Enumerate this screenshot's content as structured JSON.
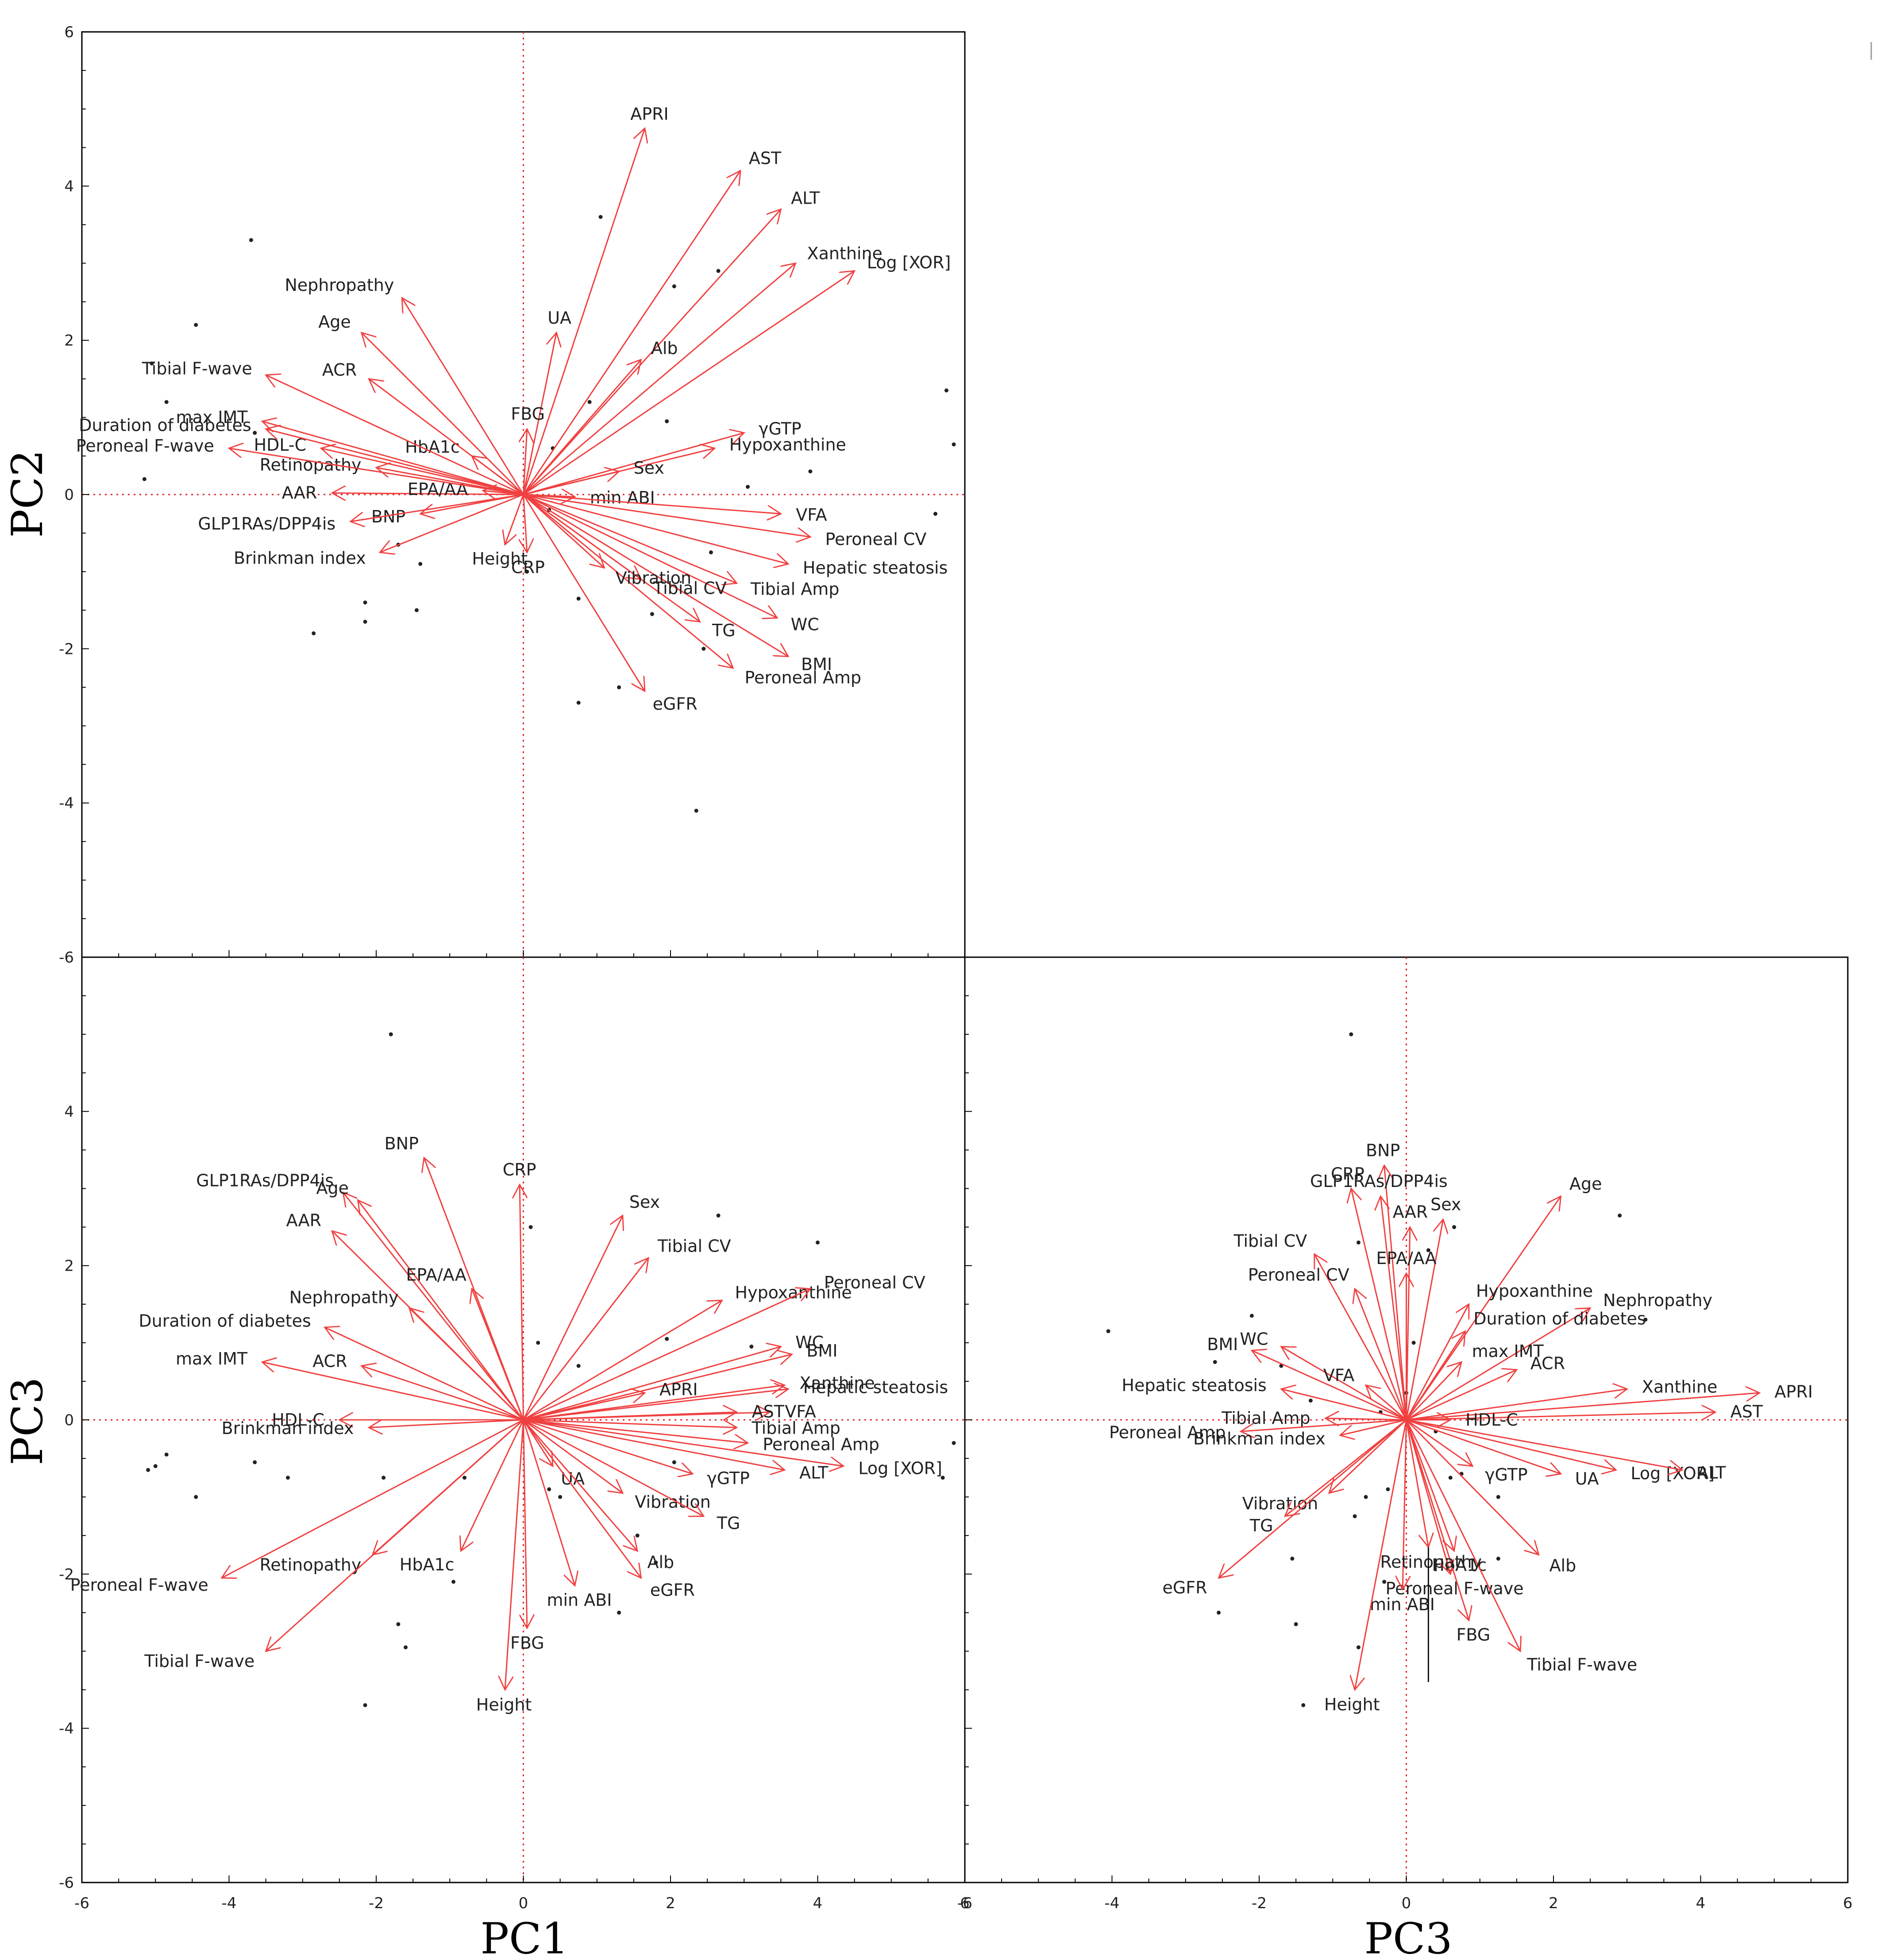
{
  "chart_data": [
    {
      "type": "biplot",
      "xlabel": "",
      "ylabel": "PC2",
      "xlim": [
        -6,
        6
      ],
      "ylim": [
        -6,
        6
      ],
      "xticks": [
        "-6",
        "-4",
        "-2",
        "0",
        "2",
        "4",
        "6"
      ],
      "yticks": [
        "6",
        "4",
        "2",
        "0",
        "-2",
        "-4",
        "-6"
      ],
      "loadings": [
        {
          "name": "APRI",
          "x": 1.65,
          "y": 4.75
        },
        {
          "name": "AST",
          "x": 2.95,
          "y": 4.2
        },
        {
          "name": "ALT",
          "x": 3.5,
          "y": 3.7
        },
        {
          "name": "Xanthine",
          "x": 3.7,
          "y": 3.0
        },
        {
          "name": "Log [XOR]",
          "x": 4.5,
          "y": 2.9
        },
        {
          "name": "UA",
          "x": 0.45,
          "y": 2.1
        },
        {
          "name": "Alb",
          "x": 1.6,
          "y": 1.75
        },
        {
          "name": "γGTP",
          "x": 3.0,
          "y": 0.8
        },
        {
          "name": "Hypoxanthine",
          "x": 2.6,
          "y": 0.6
        },
        {
          "name": "FBG",
          "x": 0.05,
          "y": 0.85
        },
        {
          "name": "Sex",
          "x": 1.3,
          "y": 0.3
        },
        {
          "name": "min ABI",
          "x": 0.7,
          "y": -0.03
        },
        {
          "name": "VFA",
          "x": 3.5,
          "y": -0.25
        },
        {
          "name": "Peroneal CV",
          "x": 3.9,
          "y": -0.55
        },
        {
          "name": "Hepatic steatosis",
          "x": 3.6,
          "y": -0.9
        },
        {
          "name": "Tibial Amp",
          "x": 2.9,
          "y": -1.15
        },
        {
          "name": "WC",
          "x": 3.45,
          "y": -1.6
        },
        {
          "name": "TG",
          "x": 2.4,
          "y": -1.65
        },
        {
          "name": "BMI",
          "x": 3.6,
          "y": -2.1
        },
        {
          "name": "Peroneal Amp",
          "x": 2.85,
          "y": -2.25
        },
        {
          "name": "eGFR",
          "x": 1.65,
          "y": -2.55
        },
        {
          "name": "Tibial CV",
          "x": 1.6,
          "y": -1.1
        },
        {
          "name": "Vibration",
          "x": 1.1,
          "y": -0.95
        },
        {
          "name": "CRP",
          "x": 0.05,
          "y": -0.75
        },
        {
          "name": "Height",
          "x": -0.25,
          "y": -0.65
        },
        {
          "name": "Brinkman index",
          "x": -1.95,
          "y": -0.75
        },
        {
          "name": "BNP",
          "x": -1.4,
          "y": -0.25
        },
        {
          "name": "GLP1RAs/DPP4is",
          "x": -2.35,
          "y": -0.35
        },
        {
          "name": "AAR",
          "x": -2.6,
          "y": 0.02
        },
        {
          "name": "EPA/AA",
          "x": -0.55,
          "y": 0.05
        },
        {
          "name": "Retinopathy",
          "x": -2.0,
          "y": 0.35
        },
        {
          "name": "HbA1c",
          "x": -0.7,
          "y": 0.5
        },
        {
          "name": "HDL-C",
          "x": -2.75,
          "y": 0.6
        },
        {
          "name": "Peroneal F-wave",
          "x": -4.0,
          "y": 0.6
        },
        {
          "name": "Duration of diabetes",
          "x": -3.5,
          "y": 0.85
        },
        {
          "name": "max IMT",
          "x": -3.55,
          "y": 0.95
        },
        {
          "name": "Tibial F-wave",
          "x": -3.5,
          "y": 1.55
        },
        {
          "name": "ACR",
          "x": -2.1,
          "y": 1.5
        },
        {
          "name": "Age",
          "x": -2.2,
          "y": 2.1
        },
        {
          "name": "Nephropathy",
          "x": -1.65,
          "y": 2.55
        }
      ],
      "scores": [
        {
          "x": -3.7,
          "y": 3.3
        },
        {
          "x": -4.45,
          "y": 2.2
        },
        {
          "x": -5.05,
          "y": 1.7
        },
        {
          "x": -4.85,
          "y": 1.2
        },
        {
          "x": -5.15,
          "y": 0.2
        },
        {
          "x": -3.65,
          "y": 0.8
        },
        {
          "x": -2.85,
          "y": -1.8
        },
        {
          "x": -2.15,
          "y": -1.4
        },
        {
          "x": -2.15,
          "y": -1.65
        },
        {
          "x": -1.7,
          "y": -0.65
        },
        {
          "x": -1.45,
          "y": -1.5
        },
        {
          "x": -1.4,
          "y": -0.9
        },
        {
          "x": 1.05,
          "y": 3.6
        },
        {
          "x": 2.05,
          "y": 2.7
        },
        {
          "x": 2.65,
          "y": 2.9
        },
        {
          "x": 5.75,
          "y": 1.35
        },
        {
          "x": 5.85,
          "y": 0.65
        },
        {
          "x": 5.6,
          "y": -0.25
        },
        {
          "x": 3.9,
          "y": 0.3
        },
        {
          "x": 3.05,
          "y": 0.1
        },
        {
          "x": 0.4,
          "y": 0.6
        },
        {
          "x": 0.9,
          "y": 1.2
        },
        {
          "x": 1.95,
          "y": 0.95
        },
        {
          "x": 0.75,
          "y": -1.35
        },
        {
          "x": 2.55,
          "y": -0.75
        },
        {
          "x": 1.75,
          "y": -1.55
        },
        {
          "x": 2.45,
          "y": -2.0
        },
        {
          "x": 0.75,
          "y": -2.7
        },
        {
          "x": 1.3,
          "y": -2.5
        },
        {
          "x": 2.35,
          "y": -4.1
        },
        {
          "x": 0.05,
          "y": -1.0
        },
        {
          "x": 0.35,
          "y": -0.2
        }
      ]
    },
    {
      "type": "biplot",
      "xlabel": "PC1",
      "ylabel": "PC3",
      "xlim": [
        -6,
        6
      ],
      "ylim": [
        -6,
        6
      ],
      "xticks": [
        "-6",
        "-4",
        "-2",
        "0",
        "2",
        "4",
        "6"
      ],
      "yticks": [
        "6",
        "4",
        "2",
        "0",
        "-2",
        "-4",
        "-6"
      ],
      "loadings": [
        {
          "name": "BNP",
          "x": -1.35,
          "y": 3.4
        },
        {
          "name": "CRP",
          "x": -0.05,
          "y": 3.05
        },
        {
          "name": "GLP1RAs/DPP4is",
          "x": -2.45,
          "y": 2.95
        },
        {
          "name": "Age",
          "x": -2.25,
          "y": 2.85
        },
        {
          "name": "AAR",
          "x": -2.6,
          "y": 2.45
        },
        {
          "name": "Sex",
          "x": 1.35,
          "y": 2.65
        },
        {
          "name": "Tibial CV",
          "x": 1.7,
          "y": 2.1
        },
        {
          "name": "EPA/AA",
          "x": -0.7,
          "y": 1.7
        },
        {
          "name": "Hypoxanthine",
          "x": 2.7,
          "y": 1.55
        },
        {
          "name": "Peroneal CV",
          "x": 3.9,
          "y": 1.7
        },
        {
          "name": "Duration of diabetes",
          "x": -2.7,
          "y": 1.2
        },
        {
          "name": "Nephropathy",
          "x": -1.55,
          "y": 1.45
        },
        {
          "name": "WC",
          "x": 3.5,
          "y": 0.95
        },
        {
          "name": "BMI",
          "x": 3.65,
          "y": 0.85
        },
        {
          "name": "max IMT",
          "x": -3.55,
          "y": 0.75
        },
        {
          "name": "ACR",
          "x": -2.2,
          "y": 0.7
        },
        {
          "name": "Xanthine",
          "x": 3.55,
          "y": 0.45
        },
        {
          "name": "Hepatic steatosis",
          "x": 3.6,
          "y": 0.4
        },
        {
          "name": "APRI",
          "x": 1.65,
          "y": 0.35
        },
        {
          "name": "VFA",
          "x": 3.35,
          "y": 0.1
        },
        {
          "name": "AST",
          "x": 2.9,
          "y": 0.1
        },
        {
          "name": "Tibial Amp",
          "x": 2.9,
          "y": -0.1
        },
        {
          "name": "Peroneal Amp",
          "x": 3.05,
          "y": -0.3
        },
        {
          "name": "Log [XOR]",
          "x": 4.35,
          "y": -0.6
        },
        {
          "name": "ALT",
          "x": 3.55,
          "y": -0.65
        },
        {
          "name": "HDL-C",
          "x": -2.5,
          "y": 0.0
        },
        {
          "name": "Brinkman index",
          "x": -2.1,
          "y": -0.1
        },
        {
          "name": "UA",
          "x": 0.4,
          "y": -0.6
        },
        {
          "name": "γGTP",
          "x": 2.3,
          "y": -0.7
        },
        {
          "name": "Vibration",
          "x": 1.35,
          "y": -0.95
        },
        {
          "name": "TG",
          "x": 2.45,
          "y": -1.25
        },
        {
          "name": "Alb",
          "x": 1.55,
          "y": -1.7
        },
        {
          "name": "eGFR",
          "x": 1.6,
          "y": -2.05
        },
        {
          "name": "min ABI",
          "x": 0.7,
          "y": -2.15
        },
        {
          "name": "HbA1c",
          "x": -0.85,
          "y": -1.7
        },
        {
          "name": "Retinopathy",
          "x": -2.05,
          "y": -1.75
        },
        {
          "name": "Peroneal F-wave",
          "x": -4.1,
          "y": -2.05
        },
        {
          "name": "FBG",
          "x": 0.05,
          "y": -2.7
        },
        {
          "name": "Tibial F-wave",
          "x": -3.5,
          "y": -3.0
        },
        {
          "name": "Height",
          "x": -0.25,
          "y": -3.5
        }
      ],
      "scores": [
        {
          "x": -1.8,
          "y": 5.0
        },
        {
          "x": 2.65,
          "y": 2.65
        },
        {
          "x": 4.0,
          "y": 2.3
        },
        {
          "x": 0.1,
          "y": 2.5
        },
        {
          "x": 0.2,
          "y": 1.0
        },
        {
          "x": 0.75,
          "y": 0.7
        },
        {
          "x": 1.95,
          "y": 1.05
        },
        {
          "x": 3.1,
          "y": 0.95
        },
        {
          "x": -5.0,
          "y": -0.6
        },
        {
          "x": -4.85,
          "y": -0.45
        },
        {
          "x": -5.1,
          "y": -0.65
        },
        {
          "x": -4.45,
          "y": -1.0
        },
        {
          "x": -3.65,
          "y": -0.55
        },
        {
          "x": -3.2,
          "y": -0.75
        },
        {
          "x": -1.9,
          "y": -0.75
        },
        {
          "x": -0.8,
          "y": -0.75
        },
        {
          "x": 0.35,
          "y": -0.9
        },
        {
          "x": 0.5,
          "y": -1.0
        },
        {
          "x": 1.55,
          "y": -1.5
        },
        {
          "x": 1.8,
          "y": -1.85
        },
        {
          "x": 2.05,
          "y": -0.55
        },
        {
          "x": 5.7,
          "y": -0.75
        },
        {
          "x": 5.85,
          "y": -0.3
        },
        {
          "x": -1.7,
          "y": -2.65
        },
        {
          "x": -1.6,
          "y": -2.95
        },
        {
          "x": -2.15,
          "y": -3.7
        },
        {
          "x": -0.95,
          "y": -2.1
        },
        {
          "x": 1.3,
          "y": -2.5
        }
      ]
    },
    {
      "type": "biplot",
      "xlabel": "PC3",
      "ylabel": "",
      "xlim": [
        -6,
        6
      ],
      "ylim": [
        -6,
        6
      ],
      "xticks": [
        "-6",
        "-4",
        "-2",
        "0",
        "2",
        "4",
        "6"
      ],
      "loadings": [
        {
          "name": "BNP",
          "x": -0.3,
          "y": 3.3
        },
        {
          "name": "CRP",
          "x": -0.75,
          "y": 3.0
        },
        {
          "name": "GLP1RAs/DPP4is",
          "x": -0.35,
          "y": 2.9
        },
        {
          "name": "Age",
          "x": 2.1,
          "y": 2.9
        },
        {
          "name": "AAR",
          "x": 0.05,
          "y": 2.5
        },
        {
          "name": "Sex",
          "x": 0.5,
          "y": 2.6
        },
        {
          "name": "Tibial CV",
          "x": -1.25,
          "y": 2.15
        },
        {
          "name": "Peroneal CV",
          "x": -0.7,
          "y": 1.7
        },
        {
          "name": "EPA/AA",
          "x": 0.0,
          "y": 1.9
        },
        {
          "name": "Hypoxanthine",
          "x": 0.85,
          "y": 1.5
        },
        {
          "name": "Nephropathy",
          "x": 2.5,
          "y": 1.45
        },
        {
          "name": "Duration of diabetes",
          "x": 0.8,
          "y": 1.15
        },
        {
          "name": "max IMT",
          "x": 0.75,
          "y": 0.75
        },
        {
          "name": "ACR",
          "x": 1.5,
          "y": 0.65
        },
        {
          "name": "Xanthine",
          "x": 3.0,
          "y": 0.4
        },
        {
          "name": "APRI",
          "x": 4.8,
          "y": 0.35
        },
        {
          "name": "AST",
          "x": 4.2,
          "y": 0.1
        },
        {
          "name": "WC",
          "x": -1.7,
          "y": 0.95
        },
        {
          "name": "BMI",
          "x": -2.1,
          "y": 0.9
        },
        {
          "name": "Hepatic steatosis",
          "x": -1.7,
          "y": 0.4
        },
        {
          "name": "VFA",
          "x": -0.55,
          "y": 0.45
        },
        {
          "name": "Tibial Amp",
          "x": -1.1,
          "y": 0.02
        },
        {
          "name": "HDL-C",
          "x": 0.6,
          "y": 0.0
        },
        {
          "name": "Peroneal Amp",
          "x": -2.25,
          "y": -0.15
        },
        {
          "name": "Brinkman index",
          "x": -0.9,
          "y": -0.2
        },
        {
          "name": "γGTP",
          "x": 0.9,
          "y": -0.6
        },
        {
          "name": "UA",
          "x": 2.1,
          "y": -0.7
        },
        {
          "name": "Log [XOR]",
          "x": 2.85,
          "y": -0.65
        },
        {
          "name": "ALT",
          "x": 3.75,
          "y": -0.65
        },
        {
          "name": "Vibration",
          "x": -1.05,
          "y": -0.95
        },
        {
          "name": "TG",
          "x": -1.65,
          "y": -1.25
        },
        {
          "name": "HbA1c",
          "x": 0.65,
          "y": -1.7
        },
        {
          "name": "Alb",
          "x": 1.8,
          "y": -1.75
        },
        {
          "name": "Peroneal F-wave",
          "x": 0.6,
          "y": -2.0
        },
        {
          "name": "eGFR",
          "x": -2.55,
          "y": -2.05
        },
        {
          "name": "min ABI",
          "x": -0.05,
          "y": -2.2
        },
        {
          "name": "FBG",
          "x": 0.85,
          "y": -2.6
        },
        {
          "name": "Tibial F-wave",
          "x": 1.55,
          "y": -3.0
        },
        {
          "name": "Height",
          "x": -0.7,
          "y": -3.5
        },
        {
          "name": "Retinopathy",
          "x": 0.3,
          "y": -1.65
        }
      ],
      "scores": [
        {
          "x": -0.75,
          "y": 5.0
        },
        {
          "x": 2.9,
          "y": 2.65
        },
        {
          "x": -4.05,
          "y": 1.15
        },
        {
          "x": -2.1,
          "y": 1.35
        },
        {
          "x": -2.6,
          "y": 0.75
        },
        {
          "x": -1.7,
          "y": 0.7
        },
        {
          "x": -1.3,
          "y": 0.25
        },
        {
          "x": -0.65,
          "y": 2.3
        },
        {
          "x": -0.35,
          "y": 0.1
        },
        {
          "x": 0.0,
          "y": 0.35
        },
        {
          "x": 0.1,
          "y": 1.0
        },
        {
          "x": 0.4,
          "y": -0.15
        },
        {
          "x": 0.3,
          "y": 2.2
        },
        {
          "x": 0.65,
          "y": 2.5
        },
        {
          "x": 3.25,
          "y": 1.3
        },
        {
          "x": -0.55,
          "y": -1.0
        },
        {
          "x": -0.25,
          "y": -0.9
        },
        {
          "x": 0.6,
          "y": -0.75
        },
        {
          "x": 0.75,
          "y": -0.7
        },
        {
          "x": 1.25,
          "y": -1.0
        },
        {
          "x": 1.25,
          "y": -1.8
        },
        {
          "x": -1.55,
          "y": -1.8
        },
        {
          "x": -2.55,
          "y": -2.5
        },
        {
          "x": -1.5,
          "y": -2.65
        },
        {
          "x": -0.65,
          "y": -2.95
        },
        {
          "x": -1.4,
          "y": -3.7
        },
        {
          "x": -0.3,
          "y": -2.1
        },
        {
          "x": -0.7,
          "y": -1.25
        }
      ]
    }
  ]
}
